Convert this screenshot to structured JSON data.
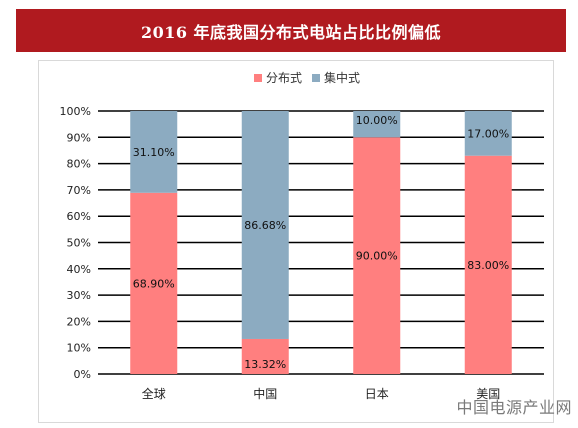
{
  "header": {
    "title": "2016 年底我国分布式电站占比比例偏低"
  },
  "watermark": {
    "text": "中国电源产业网"
  },
  "chart_data": {
    "type": "bar",
    "stacked": true,
    "categories": [
      "全球",
      "中国",
      "日本",
      "美国"
    ],
    "series": [
      {
        "name": "分布式",
        "values": [
          68.9,
          13.32,
          90.0,
          83.0
        ],
        "labels": [
          "68.90%",
          "13.32%",
          "90.00%",
          "83.00%"
        ],
        "color": "#ff7f7f"
      },
      {
        "name": "集中式",
        "values": [
          31.1,
          86.68,
          10.0,
          17.0
        ],
        "labels": [
          "31.10%",
          "86.68%",
          "10.00%",
          "17.00%"
        ],
        "color": "#8cabc1"
      }
    ],
    "yticks": [
      "0%",
      "10%",
      "20%",
      "30%",
      "40%",
      "50%",
      "60%",
      "70%",
      "80%",
      "90%",
      "100%"
    ],
    "ylim": [
      0,
      100
    ],
    "grid": true,
    "legend": "top"
  }
}
